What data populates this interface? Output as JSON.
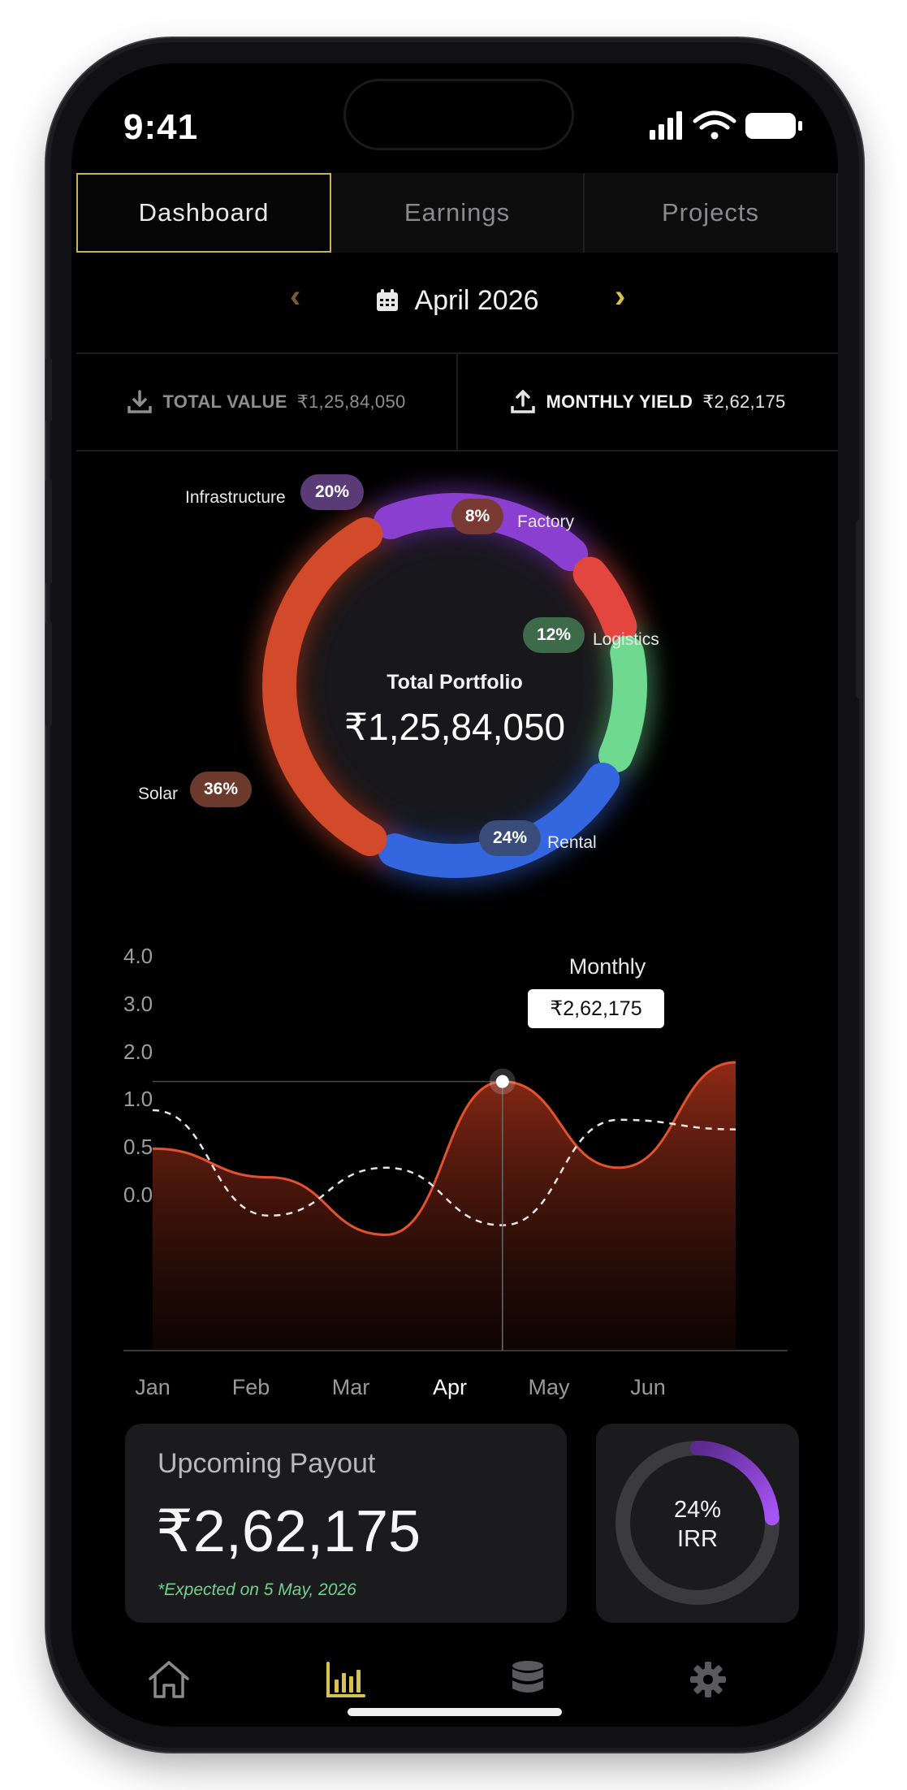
{
  "status": {
    "time": "9:41"
  },
  "tabs": [
    {
      "label": "Dashboard",
      "active": true
    },
    {
      "label": "Earnings",
      "active": false
    },
    {
      "label": "Projects",
      "active": false
    }
  ],
  "date_nav": {
    "label": "April 2026",
    "prev_icon": "chevron-left-icon",
    "next_icon": "chevron-right-icon",
    "calendar_icon": "calendar-icon"
  },
  "stats": {
    "total_value": {
      "label": "TOTAL VALUE",
      "amount": "₹1,25,84,050",
      "icon": "download-icon"
    },
    "monthly_yield": {
      "label": "MONTHLY YIELD",
      "amount": "₹2,62,175",
      "icon": "upload-icon"
    }
  },
  "portfolio": {
    "center_title": "Total Portfolio",
    "center_value": "₹1,25,84,050",
    "segments": [
      {
        "name": "Infrastructure",
        "pct": "20%",
        "value": 20,
        "color": "#8b3fd0"
      },
      {
        "name": "Factory",
        "pct": "8%",
        "value": 8,
        "color": "#e2463f"
      },
      {
        "name": "Logistics",
        "pct": "12%",
        "value": 12,
        "color": "#6ed98f"
      },
      {
        "name": "Rental",
        "pct": "24%",
        "value": 24,
        "color": "#3466e0"
      },
      {
        "name": "Solar",
        "pct": "36%",
        "value": 36,
        "color": "#d24a2a"
      }
    ]
  },
  "chart_data": {
    "type": "area",
    "categories": [
      "Jan",
      "Feb",
      "Mar",
      "Apr",
      "May",
      "Jun"
    ],
    "y_ticks": [
      "4.0",
      "3.0",
      "2.0",
      "1.0",
      "0.5",
      "0.0"
    ],
    "series": [
      {
        "name": "Monthly",
        "style": "area",
        "values": [
          1.6,
          1.3,
          0.7,
          2.3,
          1.4,
          2.5
        ],
        "color": "#e2522f"
      },
      {
        "style": "dashed",
        "values": [
          2.0,
          0.9,
          1.4,
          0.8,
          1.9,
          1.8
        ],
        "color": "#e6e6e6"
      }
    ],
    "highlight": {
      "category": "Apr",
      "label": "Monthly",
      "value_label": "₹2,62,175"
    }
  },
  "payout": {
    "title": "Upcoming Payout",
    "amount": "₹2,62,175",
    "note": "*Expected on 5 May, 2026"
  },
  "irr": {
    "pct": "24%",
    "label": "IRR",
    "value": 24
  },
  "nav": [
    {
      "name": "home",
      "icon": "home-icon",
      "active": false
    },
    {
      "name": "analytics",
      "icon": "bar-chart-icon",
      "active": true
    },
    {
      "name": "database",
      "icon": "database-icon",
      "active": false
    },
    {
      "name": "settings",
      "icon": "gear-icon",
      "active": false
    }
  ],
  "colors": {
    "accent": "#d8c24e",
    "background": "#000000",
    "card": "#1b1b1d"
  }
}
